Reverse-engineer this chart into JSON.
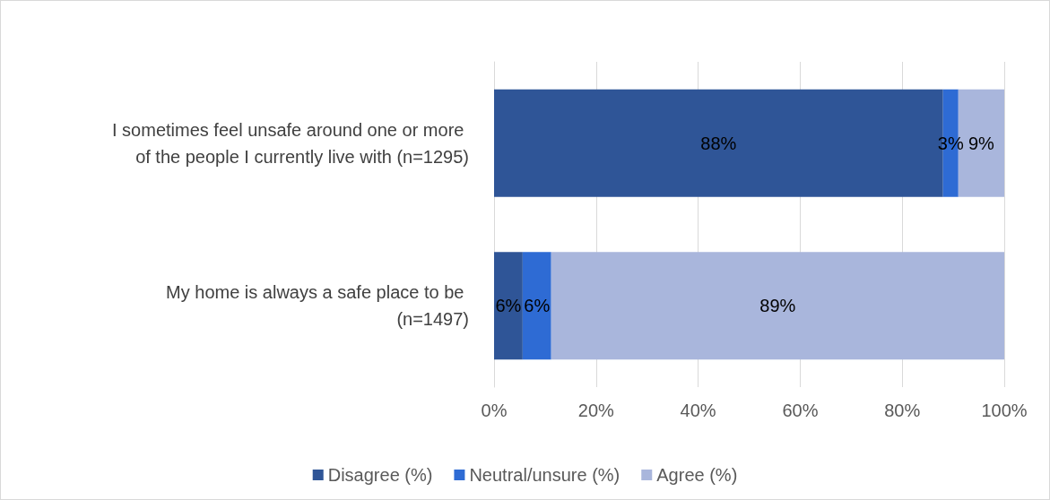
{
  "chart_data": {
    "type": "bar",
    "orientation": "horizontal",
    "stacked": true,
    "categories": [
      "I sometimes feel unsafe around one or more of the people I currently live with (n=1295)",
      "My home is always a safe place to be (n=1497)"
    ],
    "series": [
      {
        "name": "Disagree (%)",
        "color": "#2f5597",
        "values": [
          88,
          5.6
        ],
        "value_labels": [
          "88%",
          "6%"
        ]
      },
      {
        "name": "Neutral/unsure (%)",
        "color": "#2e6bd4",
        "values": [
          3,
          5.6
        ],
        "value_labels": [
          "3%",
          "6%"
        ]
      },
      {
        "name": "Agree (%)",
        "color": "#a9b6dc",
        "values": [
          9,
          88.8
        ],
        "value_labels": [
          "9%",
          "89%"
        ]
      }
    ],
    "xlim": [
      0,
      100
    ],
    "xticks": [
      {
        "value": 0,
        "label": "0%"
      },
      {
        "value": 20,
        "label": "20%"
      },
      {
        "value": 40,
        "label": "40%"
      },
      {
        "value": 60,
        "label": "60%"
      },
      {
        "value": 80,
        "label": "80%"
      },
      {
        "value": 100,
        "label": "100%"
      }
    ],
    "grid": "x",
    "legend": "bottom"
  }
}
